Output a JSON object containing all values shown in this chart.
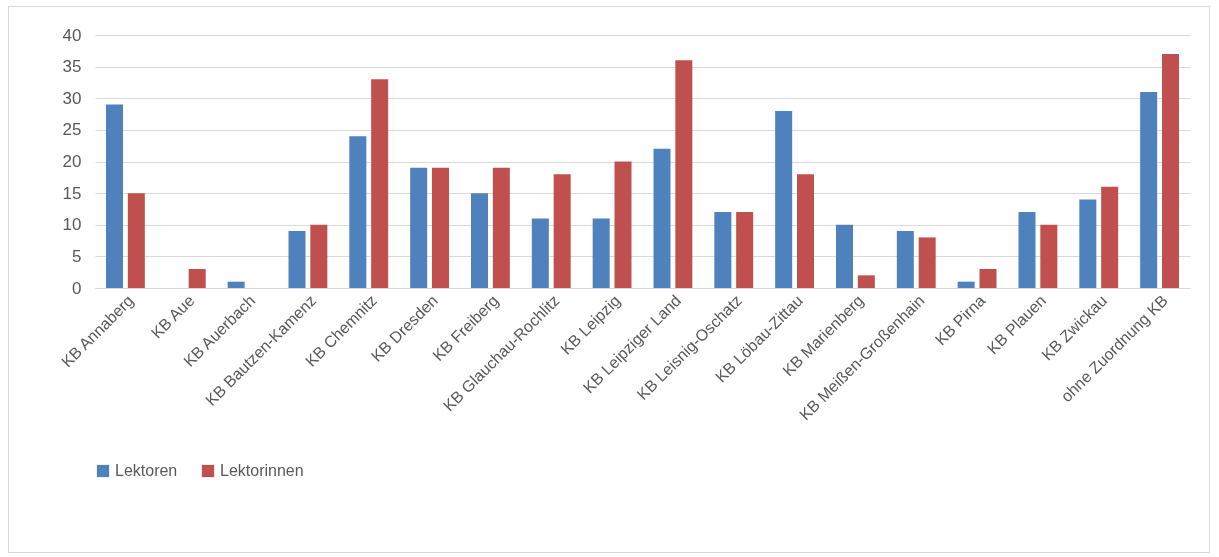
{
  "chart_data": {
    "type": "bar",
    "categories": [
      "KB Annaberg",
      "KB Aue",
      "KB Auerbach",
      "KB Bautzen-Kamenz",
      "KB Chemnitz",
      "KB Dresden",
      "KB Freiberg",
      "KB Glauchau-Rochlitz",
      "KB Leipzig",
      "KB Leipziger Land",
      "KB Leisnig-Oschatz",
      "KB Löbau-Zittau",
      "KB Marienberg",
      "KB Meißen-Großenhain",
      "KB Pirna",
      "KB Plauen",
      "KB Zwickau",
      "ohne Zuordnung KB"
    ],
    "series": [
      {
        "name": "Lektoren",
        "color": "#4f81bd",
        "values": [
          29,
          0,
          1,
          9,
          24,
          19,
          15,
          11,
          11,
          22,
          12,
          28,
          10,
          9,
          1,
          12,
          14,
          31
        ]
      },
      {
        "name": "Lektorinnen",
        "color": "#c0504d",
        "values": [
          15,
          3,
          0,
          10,
          33,
          19,
          19,
          18,
          20,
          36,
          12,
          18,
          2,
          8,
          3,
          10,
          16,
          37
        ]
      }
    ],
    "ylim": [
      0,
      40
    ],
    "yticks": [
      0,
      5,
      10,
      15,
      20,
      25,
      30,
      35,
      40
    ],
    "grid": "y",
    "legend": "bottom"
  }
}
